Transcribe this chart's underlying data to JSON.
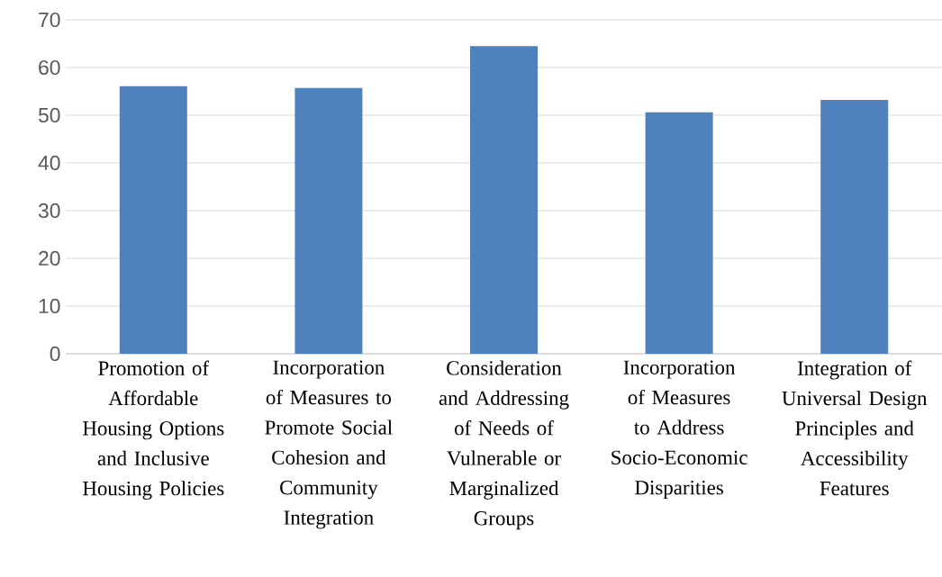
{
  "chart_data": {
    "type": "bar",
    "categories": [
      "Promotion of Affordable Housing Options and Inclusive Housing Policies",
      "Incorporation of Measures to Promote Social Cohesion and Community Integration",
      "Consideration and Addressing of Needs of Vulnerable or Marginalized Groups",
      "Incorporation of Measures to Address Socio-Economic Disparities",
      "Integration of Universal Design Principles and Accessibility Features"
    ],
    "values": [
      56.1,
      55.7,
      64.5,
      50.6,
      53.2
    ],
    "color": "#4f81bd",
    "ylim": [
      0,
      70
    ],
    "yticks": [
      0,
      10,
      20,
      30,
      40,
      50,
      60,
      70
    ],
    "grid": "y"
  }
}
